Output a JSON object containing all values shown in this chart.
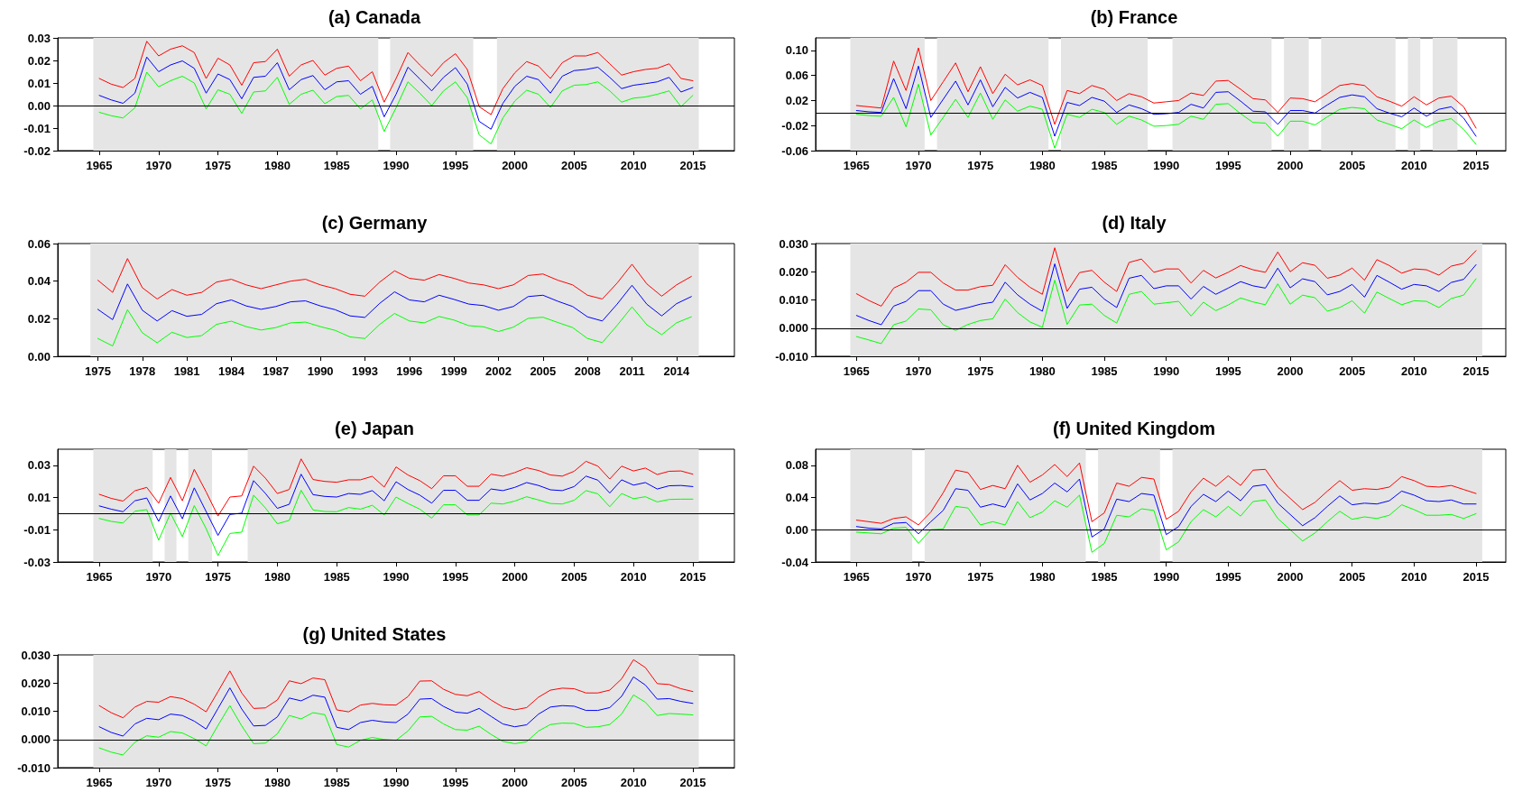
{
  "chart_data": [
    {
      "type": "line",
      "title": "(a) Canada",
      "marker": "none",
      "x": [
        1965,
        1966,
        1967,
        1968,
        1969,
        1970,
        1971,
        1972,
        1973,
        1974,
        1975,
        1976,
        1977,
        1978,
        1979,
        1980,
        1981,
        1982,
        1983,
        1984,
        1985,
        1986,
        1987,
        1988,
        1989,
        1990,
        1991,
        1992,
        1993,
        1994,
        1995,
        1996,
        1997,
        1998,
        1999,
        2000,
        2001,
        2002,
        2003,
        2004,
        2005,
        2006,
        2007,
        2008,
        2009,
        2010,
        2011,
        2012,
        2013,
        2014,
        2015
      ],
      "xlim": [
        1961.5,
        2018.5
      ],
      "xticks": [
        1965,
        1970,
        1975,
        1980,
        1985,
        1990,
        1995,
        2000,
        2005,
        2010,
        2015
      ],
      "ylim": [
        -0.02,
        0.03
      ],
      "yticks": [
        -0.02,
        -0.01,
        {
          "value": 0,
          "label": "0.00"
        },
        0.01,
        0.02,
        0.03
      ],
      "series": [
        {
          "color": "#ff0000",
          "values": [
            0.012,
            0.0095,
            0.008,
            0.012,
            0.0285,
            0.022,
            0.025,
            0.0265,
            0.0235,
            0.012,
            0.021,
            0.018,
            0.009,
            0.019,
            0.0195,
            0.025,
            0.013,
            0.018,
            0.02,
            0.0135,
            0.0165,
            0.0175,
            0.011,
            0.015,
            0.0015,
            0.012,
            0.0235,
            0.018,
            0.013,
            0.019,
            0.023,
            0.016,
            -0.0005,
            -0.004,
            0.0075,
            0.0145,
            0.0195,
            0.0175,
            0.012,
            0.019,
            0.022,
            0.022,
            0.0235,
            0.0185,
            0.0135,
            0.015,
            0.016,
            0.0165,
            0.0185,
            0.012,
            0.011
          ]
        },
        {
          "color": "#0000ff",
          "values": [
            0.0045,
            0.0025,
            0.001,
            0.0055,
            0.0215,
            0.015,
            0.018,
            0.0198,
            0.0165,
            0.0055,
            0.014,
            0.0115,
            0.003,
            0.0125,
            0.013,
            0.019,
            0.007,
            0.0115,
            0.0133,
            0.007,
            0.0105,
            0.011,
            0.005,
            0.0085,
            -0.005,
            0.005,
            0.017,
            0.0118,
            0.0065,
            0.0125,
            0.0168,
            0.0095,
            -0.007,
            -0.0105,
            0.001,
            0.0085,
            0.013,
            0.0115,
            0.0055,
            0.013,
            0.0155,
            0.016,
            0.017,
            0.0125,
            0.0075,
            0.009,
            0.0097,
            0.0105,
            0.0125,
            0.006,
            0.008
          ]
        },
        {
          "color": "#00ff00",
          "values": [
            -0.003,
            -0.0045,
            -0.0055,
            -0.001,
            0.0148,
            0.0083,
            0.011,
            0.013,
            0.01,
            -0.0015,
            0.007,
            0.005,
            -0.0035,
            0.006,
            0.0065,
            0.0125,
            0.0005,
            0.005,
            0.0068,
            0.0008,
            0.004,
            0.0045,
            -0.0015,
            0.0025,
            -0.0115,
            -0.001,
            0.0105,
            0.0055,
            0,
            0.0065,
            0.0105,
            0.0035,
            -0.013,
            -0.017,
            -0.0055,
            0.002,
            0.0068,
            0.005,
            -0.0008,
            0.0065,
            0.009,
            0.0093,
            0.0105,
            0.0065,
            0.0015,
            0.0033,
            0.0038,
            0.005,
            0.0065,
            -0.0005,
            0.0045
          ]
        }
      ],
      "bands": [
        {
          "axis": "x",
          "from": 1964.5,
          "to": 1988.5,
          "color": "#e5e5e5"
        },
        {
          "axis": "x",
          "from": 1989.5,
          "to": 1996.5,
          "color": "#e5e5e5"
        },
        {
          "axis": "x",
          "from": 1998.5,
          "to": 2015.5,
          "color": "#e5e5e5"
        }
      ],
      "ref_lines": [
        {
          "axis": "y",
          "value": 0,
          "color": "#000000"
        }
      ]
    },
    {
      "type": "line",
      "title": "(b) France",
      "marker": "none",
      "x": [
        1965,
        1966,
        1967,
        1968,
        1969,
        1970,
        1971,
        1972,
        1973,
        1974,
        1975,
        1976,
        1977,
        1978,
        1979,
        1980,
        1981,
        1982,
        1983,
        1984,
        1985,
        1986,
        1987,
        1988,
        1989,
        1990,
        1991,
        1992,
        1993,
        1994,
        1995,
        1996,
        1997,
        1998,
        1999,
        2000,
        2001,
        2002,
        2003,
        2004,
        2005,
        2006,
        2007,
        2008,
        2009,
        2010,
        2011,
        2012,
        2013,
        2014,
        2015
      ],
      "xlim": [
        1961.7,
        2017.4
      ],
      "xticks": [
        1965,
        1970,
        1975,
        1980,
        1985,
        1990,
        1995,
        2000,
        2005,
        2010,
        2015
      ],
      "ylim": [
        -0.06,
        0.12
      ],
      "yticks": [
        -0.06,
        -0.02,
        0.02,
        0.06,
        {
          "value": 0.1,
          "label": "0.10"
        }
      ],
      "series": [
        {
          "color": "#ff0000",
          "values": [
            0.012,
            0.01,
            0.008,
            0.083,
            0.036,
            0.104,
            0.02,
            0.05,
            0.08,
            0.034,
            0.074,
            0.031,
            0.062,
            0.045,
            0.053,
            0.044,
            -0.018,
            0.036,
            0.031,
            0.044,
            0.038,
            0.02,
            0.031,
            0.026,
            0.016,
            0.018,
            0.02,
            0.032,
            0.028,
            0.051,
            0.052,
            0.038,
            0.023,
            0.021,
            0.001,
            0.024,
            0.023,
            0.018,
            0.031,
            0.044,
            0.047,
            0.044,
            0.026,
            0.019,
            0.011,
            0.026,
            0.013,
            0.024,
            0.027,
            0.01,
            -0.024
          ]
        },
        {
          "color": "#0000ff",
          "values": [
            0.004,
            0.002,
            0.001,
            0.055,
            0.007,
            0.075,
            -0.007,
            0.022,
            0.051,
            0.013,
            0.053,
            0.01,
            0.041,
            0.024,
            0.033,
            0.025,
            -0.037,
            0.017,
            0.012,
            0.025,
            0.019,
            0.001,
            0.013,
            0.007,
            -0.002,
            -0.001,
            0.001,
            0.014,
            0.008,
            0.033,
            0.034,
            0.019,
            0.003,
            0.002,
            -0.018,
            0.004,
            0.004,
            0,
            0.013,
            0.025,
            0.029,
            0.026,
            0.007,
            0,
            -0.006,
            0.008,
            -0.005,
            0.006,
            0.01,
            -0.008,
            -0.037
          ]
        },
        {
          "color": "#00ff00",
          "values": [
            -0.002,
            -0.004,
            -0.005,
            0.025,
            -0.022,
            0.046,
            -0.035,
            -0.007,
            0.022,
            -0.007,
            0.032,
            -0.01,
            0.021,
            0.003,
            0.011,
            0.006,
            -0.056,
            -0.002,
            -0.007,
            0.006,
            0.001,
            -0.018,
            -0.005,
            -0.011,
            -0.021,
            -0.02,
            -0.018,
            -0.005,
            -0.01,
            0.014,
            0.015,
            -0.001,
            -0.015,
            -0.016,
            -0.037,
            -0.013,
            -0.013,
            -0.019,
            -0.006,
            0.006,
            0.009,
            0.007,
            -0.011,
            -0.018,
            -0.025,
            -0.011,
            -0.023,
            -0.013,
            -0.009,
            -0.026,
            -0.05
          ]
        }
      ],
      "bands": [
        {
          "axis": "x",
          "from": 1964.5,
          "to": 1970.5,
          "color": "#e5e5e5"
        },
        {
          "axis": "x",
          "from": 1971.5,
          "to": 1980.5,
          "color": "#e5e5e5"
        },
        {
          "axis": "x",
          "from": 1981.5,
          "to": 1988.5,
          "color": "#e5e5e5"
        },
        {
          "axis": "x",
          "from": 1990.5,
          "to": 1998.5,
          "color": "#e5e5e5"
        },
        {
          "axis": "x",
          "from": 1999.5,
          "to": 2001.5,
          "color": "#e5e5e5"
        },
        {
          "axis": "x",
          "from": 2002.5,
          "to": 2008.5,
          "color": "#e5e5e5"
        },
        {
          "axis": "x",
          "from": 2009.5,
          "to": 2010.5,
          "color": "#e5e5e5"
        },
        {
          "axis": "x",
          "from": 2011.5,
          "to": 2013.5,
          "color": "#e5e5e5"
        }
      ],
      "ref_lines": [
        {
          "axis": "y",
          "value": 0,
          "color": "#000000"
        }
      ]
    },
    {
      "type": "line",
      "title": "(c) Germany",
      "marker": "none",
      "x": [
        1975,
        1976,
        1977,
        1978,
        1979,
        1980,
        1981,
        1982,
        1983,
        1984,
        1985,
        1986,
        1987,
        1988,
        1989,
        1990,
        1991,
        1992,
        1993,
        1994,
        1995,
        1996,
        1997,
        1998,
        1999,
        2000,
        2001,
        2002,
        2003,
        2004,
        2005,
        2006,
        2007,
        2008,
        2009,
        2010,
        2011,
        2012,
        2013,
        2014,
        2015
      ],
      "xlim": [
        1972.3,
        2017.9
      ],
      "xticks": [
        1975,
        1978,
        1981,
        1984,
        1987,
        1990,
        1993,
        1996,
        1999,
        2002,
        2005,
        2008,
        2011,
        2014
      ],
      "ylim": [
        0,
        0.06
      ],
      "yticks": [
        {
          "value": 0,
          "label": "0.00"
        },
        0.02,
        0.04,
        0.06
      ],
      "series": [
        {
          "color": "#ff0000",
          "values": [
            0.0405,
            0.034,
            0.052,
            0.0365,
            0.0305,
            0.0355,
            0.0325,
            0.034,
            0.0395,
            0.041,
            0.038,
            0.036,
            0.038,
            0.04,
            0.041,
            0.038,
            0.036,
            0.033,
            0.032,
            0.0395,
            0.0455,
            0.0415,
            0.0405,
            0.0435,
            0.0415,
            0.039,
            0.038,
            0.036,
            0.038,
            0.043,
            0.0438,
            0.0405,
            0.038,
            0.0325,
            0.0305,
            0.039,
            0.049,
            0.0385,
            0.032,
            0.038,
            0.0425
          ]
        },
        {
          "color": "#0000ff",
          "values": [
            0.025,
            0.0195,
            0.0385,
            0.0245,
            0.0188,
            0.0243,
            0.0213,
            0.0223,
            0.028,
            0.03,
            0.0268,
            0.025,
            0.0265,
            0.029,
            0.0295,
            0.0268,
            0.0248,
            0.0215,
            0.0207,
            0.0282,
            0.0343,
            0.03,
            0.029,
            0.0325,
            0.0303,
            0.0278,
            0.027,
            0.0245,
            0.0265,
            0.0318,
            0.0325,
            0.0293,
            0.0265,
            0.021,
            0.0188,
            0.0278,
            0.0378,
            0.0277,
            0.0215,
            0.028,
            0.0318
          ]
        },
        {
          "color": "#00ff00",
          "values": [
            0.0095,
            0.0055,
            0.0248,
            0.0125,
            0.0072,
            0.0128,
            0.01,
            0.011,
            0.017,
            0.0187,
            0.0158,
            0.014,
            0.0153,
            0.0178,
            0.0182,
            0.0158,
            0.0138,
            0.0103,
            0.0095,
            0.017,
            0.0228,
            0.0188,
            0.0178,
            0.0212,
            0.0193,
            0.0163,
            0.0157,
            0.0132,
            0.0155,
            0.0202,
            0.0208,
            0.018,
            0.0153,
            0.0095,
            0.0073,
            0.0165,
            0.0263,
            0.0168,
            0.0115,
            0.0178,
            0.021
          ]
        }
      ],
      "bands": [
        {
          "axis": "x",
          "from": 1974.5,
          "to": 2015.5,
          "color": "#e5e5e5"
        }
      ]
    },
    {
      "type": "line",
      "title": "(d) Italy",
      "marker": "none",
      "x": [
        1965,
        1966,
        1967,
        1968,
        1969,
        1970,
        1971,
        1972,
        1973,
        1974,
        1975,
        1976,
        1977,
        1978,
        1979,
        1980,
        1981,
        1982,
        1983,
        1984,
        1985,
        1986,
        1987,
        1988,
        1989,
        1990,
        1991,
        1992,
        1993,
        1994,
        1995,
        1996,
        1997,
        1998,
        1999,
        2000,
        2001,
        2002,
        2003,
        2004,
        2005,
        2006,
        2007,
        2008,
        2009,
        2010,
        2011,
        2012,
        2013,
        2014,
        2015
      ],
      "xlim": [
        1961.7,
        2017.4
      ],
      "xticks": [
        1965,
        1970,
        1975,
        1980,
        1985,
        1990,
        1995,
        2000,
        2005,
        2010,
        2015
      ],
      "ylim": [
        -0.01,
        0.03
      ],
      "yticks": [
        {
          "value": -0.01,
          "label": "-0.010"
        },
        {
          "value": 0,
          "label": "0.000"
        },
        {
          "value": 0.01,
          "label": "0.010"
        },
        {
          "value": 0.02,
          "label": "0.020"
        },
        {
          "value": 0.03,
          "label": "0.030"
        }
      ],
      "series": [
        {
          "color": "#ff0000",
          "values": [
            0.0122,
            0.0098,
            0.0078,
            0.0142,
            0.0163,
            0.0198,
            0.0198,
            0.016,
            0.0135,
            0.0135,
            0.0147,
            0.0152,
            0.0225,
            0.018,
            0.0145,
            0.012,
            0.0285,
            0.013,
            0.0197,
            0.0205,
            0.0163,
            0.013,
            0.0233,
            0.0245,
            0.0198,
            0.021,
            0.021,
            0.016,
            0.0205,
            0.0178,
            0.0198,
            0.0222,
            0.0207,
            0.0198,
            0.027,
            0.02,
            0.0232,
            0.0223,
            0.0177,
            0.0188,
            0.0213,
            0.017,
            0.0243,
            0.0222,
            0.0195,
            0.021,
            0.0207,
            0.0188,
            0.022,
            0.023,
            0.0275
          ]
        },
        {
          "color": "#0000ff",
          "values": [
            0.0045,
            0.0027,
            0.0012,
            0.0078,
            0.0095,
            0.0133,
            0.0133,
            0.0085,
            0.0063,
            0.0073,
            0.0085,
            0.0092,
            0.0163,
            0.0118,
            0.0085,
            0.006,
            0.0228,
            0.007,
            0.0138,
            0.0145,
            0.0103,
            0.0073,
            0.0177,
            0.0187,
            0.014,
            0.015,
            0.015,
            0.0103,
            0.0148,
            0.012,
            0.0142,
            0.0165,
            0.015,
            0.0142,
            0.0213,
            0.0143,
            0.0175,
            0.0165,
            0.0118,
            0.013,
            0.0155,
            0.011,
            0.0187,
            0.0163,
            0.0138,
            0.0155,
            0.015,
            0.013,
            0.0162,
            0.0173,
            0.0225
          ]
        },
        {
          "color": "#00ff00",
          "values": [
            -0.003,
            -0.0042,
            -0.0055,
            0.0012,
            0.0025,
            0.0068,
            0.0065,
            0.0012,
            -0.0008,
            0.0013,
            0.0027,
            0.0033,
            0.0103,
            0.0055,
            0.0022,
            0.0003,
            0.017,
            0.0013,
            0.0082,
            0.0085,
            0.0045,
            0.0018,
            0.012,
            0.013,
            0.0085,
            0.009,
            0.0095,
            0.0043,
            0.0092,
            0.0062,
            0.0082,
            0.0107,
            0.0093,
            0.0083,
            0.0157,
            0.0085,
            0.0117,
            0.0108,
            0.006,
            0.0073,
            0.0097,
            0.0053,
            0.0128,
            0.0105,
            0.0083,
            0.0097,
            0.0095,
            0.0073,
            0.0105,
            0.0117,
            0.0175
          ]
        }
      ],
      "bands": [
        {
          "axis": "x",
          "from": 1964.5,
          "to": 2015.5,
          "color": "#e5e5e5"
        }
      ],
      "ref_lines": [
        {
          "axis": "y",
          "value": 0,
          "color": "#000000"
        }
      ]
    },
    {
      "type": "line",
      "title": "(e) Japan",
      "marker": "none",
      "x": [
        1965,
        1966,
        1967,
        1968,
        1969,
        1970,
        1971,
        1972,
        1973,
        1974,
        1975,
        1976,
        1977,
        1978,
        1979,
        1980,
        1981,
        1982,
        1983,
        1984,
        1985,
        1986,
        1987,
        1988,
        1989,
        1990,
        1991,
        1992,
        1993,
        1994,
        1995,
        1996,
        1997,
        1998,
        1999,
        2000,
        2001,
        2002,
        2003,
        2004,
        2005,
        2006,
        2007,
        2008,
        2009,
        2010,
        2011,
        2012,
        2013,
        2014,
        2015
      ],
      "xlim": [
        1961.5,
        2018.5
      ],
      "xticks": [
        1965,
        1970,
        1975,
        1980,
        1985,
        1990,
        1995,
        2000,
        2005,
        2010,
        2015
      ],
      "ylim": [
        -0.03,
        0.04
      ],
      "yticks": [
        -0.03,
        -0.01,
        0.01,
        0.03
      ],
      "series": [
        {
          "color": "#ff0000",
          "values": [
            0.012,
            0.0095,
            0.0078,
            0.0142,
            0.0163,
            0.0065,
            0.0225,
            0.008,
            0.0275,
            0.0135,
            -0.0015,
            0.0103,
            0.011,
            0.0295,
            0.022,
            0.0125,
            0.015,
            0.034,
            0.0212,
            0.02,
            0.0195,
            0.021,
            0.021,
            0.0232,
            0.0165,
            0.029,
            0.024,
            0.0205,
            0.0155,
            0.0235,
            0.0235,
            0.017,
            0.017,
            0.0245,
            0.0233,
            0.0255,
            0.0285,
            0.0268,
            0.024,
            0.0233,
            0.0263,
            0.0325,
            0.0295,
            0.0215,
            0.0295,
            0.0265,
            0.0283,
            0.0243,
            0.0263,
            0.0265,
            0.0245
          ]
        },
        {
          "color": "#0000ff",
          "values": [
            0.0048,
            0.0028,
            0.0012,
            0.008,
            0.0097,
            -0.0048,
            0.011,
            -0.0032,
            0.016,
            0.0013,
            -0.0135,
            -0.0005,
            0.0003,
            0.0205,
            0.0125,
            0.0033,
            0.0058,
            0.0245,
            0.0118,
            0.0107,
            0.0103,
            0.0125,
            0.012,
            0.0143,
            0.008,
            0.0198,
            0.015,
            0.0115,
            0.0065,
            0.0145,
            0.0145,
            0.0083,
            0.0083,
            0.0153,
            0.0143,
            0.0163,
            0.0193,
            0.0175,
            0.0148,
            0.0143,
            0.0168,
            0.0233,
            0.0208,
            0.0128,
            0.021,
            0.0177,
            0.0193,
            0.0153,
            0.0173,
            0.0175,
            0.0168
          ]
        },
        {
          "color": "#00ff00",
          "values": [
            -0.003,
            -0.0048,
            -0.0058,
            0.0015,
            0.0025,
            -0.0165,
            0.0003,
            -0.0143,
            0.005,
            -0.0093,
            -0.026,
            -0.0123,
            -0.0115,
            0.0115,
            0.0035,
            -0.0063,
            -0.0042,
            0.0145,
            0.0023,
            0.0013,
            0.0012,
            0.0038,
            0.0028,
            0.0052,
            -0.0008,
            0.0103,
            0.0063,
            0.0028,
            -0.0028,
            0.0055,
            0.0055,
            -0.0008,
            -0.0008,
            0.0065,
            0.006,
            0.0078,
            0.0105,
            0.0085,
            0.0063,
            0.006,
            0.0083,
            0.0143,
            0.0123,
            0.0043,
            0.0125,
            0.0093,
            0.0105,
            0.0073,
            0.0088,
            0.009,
            0.009
          ]
        }
      ],
      "bands": [
        {
          "axis": "x",
          "from": 1964.5,
          "to": 1969.5,
          "color": "#e5e5e5"
        },
        {
          "axis": "x",
          "from": 1970.5,
          "to": 1971.5,
          "color": "#e5e5e5"
        },
        {
          "axis": "x",
          "from": 1972.5,
          "to": 1974.5,
          "color": "#e5e5e5"
        },
        {
          "axis": "x",
          "from": 1977.5,
          "to": 2015.5,
          "color": "#e5e5e5"
        }
      ],
      "ref_lines": [
        {
          "axis": "y",
          "value": 0,
          "color": "#000000"
        }
      ]
    },
    {
      "type": "line",
      "title": "(f) United Kingdom",
      "marker": "none",
      "x": [
        1965,
        1966,
        1967,
        1968,
        1969,
        1970,
        1971,
        1972,
        1973,
        1974,
        1975,
        1976,
        1977,
        1978,
        1979,
        1980,
        1981,
        1982,
        1983,
        1984,
        1985,
        1986,
        1987,
        1988,
        1989,
        1990,
        1991,
        1992,
        1993,
        1994,
        1995,
        1996,
        1997,
        1998,
        1999,
        2000,
        2001,
        2002,
        2003,
        2004,
        2005,
        2006,
        2007,
        2008,
        2009,
        2010,
        2011,
        2012,
        2013,
        2014,
        2015
      ],
      "xlim": [
        1961.7,
        2017.4
      ],
      "xticks": [
        1965,
        1970,
        1975,
        1980,
        1985,
        1990,
        1995,
        2000,
        2005,
        2010,
        2015
      ],
      "ylim": [
        -0.04,
        0.1
      ],
      "yticks": [
        -0.04,
        {
          "value": 0,
          "label": "0.00"
        },
        0.04,
        0.08
      ],
      "series": [
        {
          "color": "#ff0000",
          "values": [
            0.012,
            0.01,
            0.008,
            0.014,
            0.016,
            0.006,
            0.022,
            0.046,
            0.074,
            0.071,
            0.05,
            0.055,
            0.051,
            0.08,
            0.059,
            0.068,
            0.081,
            0.066,
            0.083,
            0.01,
            0.021,
            0.058,
            0.054,
            0.065,
            0.063,
            0.013,
            0.023,
            0.047,
            0.064,
            0.054,
            0.067,
            0.055,
            0.074,
            0.075,
            0.053,
            0.039,
            0.025,
            0.034,
            0.048,
            0.061,
            0.049,
            0.051,
            0.05,
            0.053,
            0.066,
            0.061,
            0.054,
            0.053,
            0.055,
            0.05,
            0.045
          ]
        },
        {
          "color": "#0000ff",
          "values": [
            0.004,
            0.002,
            0.001,
            0.008,
            0.009,
            -0.005,
            0.01,
            0.024,
            0.051,
            0.049,
            0.028,
            0.032,
            0.028,
            0.057,
            0.037,
            0.045,
            0.058,
            0.047,
            0.063,
            -0.009,
            0.001,
            0.038,
            0.035,
            0.045,
            0.043,
            -0.006,
            0.004,
            0.029,
            0.044,
            0.035,
            0.048,
            0.036,
            0.054,
            0.056,
            0.033,
            0.019,
            0.005,
            0.015,
            0.029,
            0.042,
            0.031,
            0.033,
            0.032,
            0.036,
            0.048,
            0.043,
            0.036,
            0.035,
            0.037,
            0.032,
            0.032
          ]
        },
        {
          "color": "#00ff00",
          "values": [
            -0.003,
            -0.004,
            -0.005,
            0.002,
            0.003,
            -0.017,
            0,
            0.001,
            0.029,
            0.027,
            0.006,
            0.01,
            0.006,
            0.035,
            0.015,
            0.022,
            0.036,
            0.028,
            0.043,
            -0.028,
            -0.017,
            0.018,
            0.016,
            0.026,
            0.024,
            -0.025,
            -0.015,
            0.01,
            0.025,
            0.016,
            0.029,
            0.017,
            0.035,
            0.037,
            0.014,
            0,
            -0.014,
            -0.004,
            0.01,
            0.023,
            0.013,
            0.016,
            0.014,
            0.018,
            0.031,
            0.025,
            0.018,
            0.018,
            0.019,
            0.014,
            0.02
          ]
        }
      ],
      "bands": [
        {
          "axis": "x",
          "from": 1964.5,
          "to": 1969.5,
          "color": "#e5e5e5"
        },
        {
          "axis": "x",
          "from": 1970.5,
          "to": 1983.5,
          "color": "#e5e5e5"
        },
        {
          "axis": "x",
          "from": 1984.5,
          "to": 1989.5,
          "color": "#e5e5e5"
        },
        {
          "axis": "x",
          "from": 1990.5,
          "to": 2015.5,
          "color": "#e5e5e5"
        }
      ],
      "ref_lines": [
        {
          "axis": "y",
          "value": 0,
          "color": "#000000"
        }
      ]
    },
    {
      "type": "line",
      "title": "(g) United States",
      "marker": "none",
      "x": [
        1965,
        1966,
        1967,
        1968,
        1969,
        1970,
        1971,
        1972,
        1973,
        1974,
        1975,
        1976,
        1977,
        1978,
        1979,
        1980,
        1981,
        1982,
        1983,
        1984,
        1985,
        1986,
        1987,
        1988,
        1989,
        1990,
        1991,
        1992,
        1993,
        1994,
        1995,
        1996,
        1997,
        1998,
        1999,
        2000,
        2001,
        2002,
        2003,
        2004,
        2005,
        2006,
        2007,
        2008,
        2009,
        2010,
        2011,
        2012,
        2013,
        2014,
        2015
      ],
      "xlim": [
        1961.5,
        2018.5
      ],
      "xticks": [
        1965,
        1970,
        1975,
        1980,
        1985,
        1990,
        1995,
        2000,
        2005,
        2010,
        2015
      ],
      "ylim": [
        -0.01,
        0.03
      ],
      "yticks": [
        {
          "value": -0.01,
          "label": "-0.010"
        },
        {
          "value": 0,
          "label": "0.000"
        },
        {
          "value": 0.01,
          "label": "0.010"
        },
        {
          "value": 0.02,
          "label": "0.020"
        },
        {
          "value": 0.03,
          "label": "0.030"
        }
      ],
      "series": [
        {
          "color": "#ff0000",
          "values": [
            0.012,
            0.0095,
            0.0077,
            0.0115,
            0.0135,
            0.0132,
            0.0152,
            0.0145,
            0.0125,
            0.0098,
            0.017,
            0.0243,
            0.0165,
            0.011,
            0.0112,
            0.014,
            0.0208,
            0.0198,
            0.0218,
            0.0212,
            0.0105,
            0.0098,
            0.0122,
            0.0128,
            0.0123,
            0.0122,
            0.0152,
            0.0207,
            0.0208,
            0.0178,
            0.016,
            0.0155,
            0.017,
            0.014,
            0.0115,
            0.0105,
            0.0113,
            0.015,
            0.0175,
            0.0182,
            0.018,
            0.0165,
            0.0165,
            0.0175,
            0.0215,
            0.0283,
            0.0255,
            0.0198,
            0.0195,
            0.018,
            0.017
          ]
        },
        {
          "color": "#0000ff",
          "values": [
            0.0045,
            0.0025,
            0.0012,
            0.0055,
            0.0075,
            0.007,
            0.009,
            0.0085,
            0.0065,
            0.0037,
            0.011,
            0.0183,
            0.0108,
            0.0048,
            0.005,
            0.008,
            0.0147,
            0.0137,
            0.0157,
            0.015,
            0.0043,
            0.0035,
            0.006,
            0.0068,
            0.0062,
            0.006,
            0.009,
            0.0143,
            0.0145,
            0.0117,
            0.0097,
            0.0093,
            0.011,
            0.0082,
            0.0055,
            0.0045,
            0.0052,
            0.009,
            0.0115,
            0.012,
            0.0118,
            0.0103,
            0.0103,
            0.0113,
            0.0153,
            0.0222,
            0.0193,
            0.0143,
            0.0145,
            0.0135,
            0.0128
          ]
        },
        {
          "color": "#00ff00",
          "values": [
            -0.003,
            -0.0045,
            -0.0055,
            -0.001,
            0.0013,
            0.0008,
            0.0028,
            0.0023,
            0.0003,
            -0.0023,
            0.005,
            0.012,
            0.0048,
            -0.0015,
            -0.0013,
            0.002,
            0.0085,
            0.0073,
            0.0095,
            0.0088,
            -0.0018,
            -0.0027,
            -0.0003,
            0.0007,
            0,
            -0.0003,
            0.003,
            0.008,
            0.0082,
            0.0055,
            0.0035,
            0.0033,
            0.0047,
            0.0018,
            -0.0007,
            -0.0015,
            -0.0008,
            0.003,
            0.0053,
            0.0058,
            0.0057,
            0.0043,
            0.0045,
            0.0053,
            0.009,
            0.0158,
            0.0132,
            0.0085,
            0.0092,
            0.009,
            0.0087
          ]
        }
      ],
      "bands": [
        {
          "axis": "x",
          "from": 1964.5,
          "to": 2015.5,
          "color": "#e5e5e5"
        }
      ],
      "ref_lines": [
        {
          "axis": "y",
          "value": 0,
          "color": "#000000"
        }
      ]
    }
  ]
}
